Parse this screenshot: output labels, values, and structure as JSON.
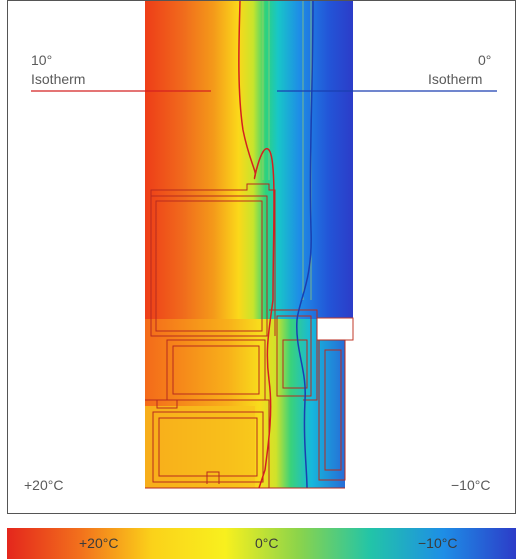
{
  "labels": {
    "isotherm_10_value": "10°",
    "isotherm_10_word": "Isotherm",
    "isotherm_0_value": "0°",
    "isotherm_0_word": "Isotherm",
    "inside_temp": "+20°C",
    "outside_temp": "−10°C"
  },
  "scale": {
    "ticks": [
      "+20°C",
      "0°C",
      "−10°C"
    ],
    "colors": [
      "#e4261c",
      "#f2701c",
      "#fbd21a",
      "#f8f01e",
      "#8cd44a",
      "#22c4a8",
      "#1e8ee6",
      "#2c3cc8"
    ]
  },
  "isotherm_colors": {
    "ten_degree": "#d42020",
    "zero_degree": "#1a3fb0"
  },
  "frame_border_color": "#555555"
}
